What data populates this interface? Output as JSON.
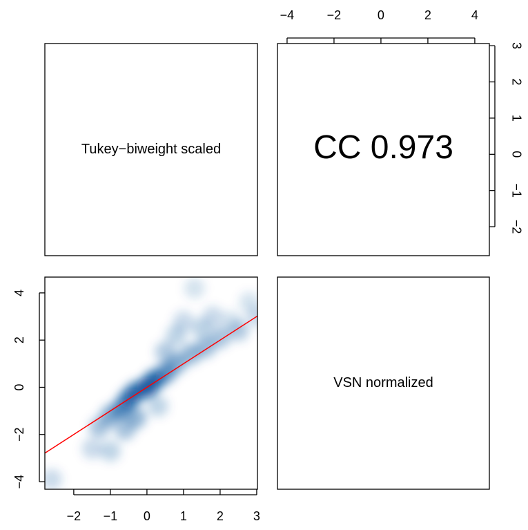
{
  "chart_data": [
    {
      "type": "label",
      "text": "Tukey−biweight scaled"
    },
    {
      "type": "label-large",
      "text": "CC 0.973",
      "xlim": [
        -4.41,
        4.62
      ],
      "xticks": [
        {
          "value": -4,
          "label": "−4"
        },
        {
          "value": -2,
          "label": "−2"
        },
        0,
        2,
        4
      ],
      "ylim": [
        -2.8,
        3.06
      ],
      "yticks": [
        {
          "value": -2,
          "label": "−2"
        },
        {
          "value": -1,
          "label": "−1"
        },
        0,
        1,
        2,
        3
      ]
    },
    {
      "type": "smooth-scatter",
      "color": "#08519c",
      "x": [
        -2.6,
        -1.5,
        -1.0,
        -1.3,
        -1.0,
        -0.7,
        -0.5,
        -0.3,
        0,
        0.2,
        0.5,
        -0.3,
        -0.6,
        0.3,
        0.8,
        1.2,
        1.6,
        2.0,
        2.5,
        0.5,
        0.8,
        1.0,
        1.3,
        1.8,
        2.3,
        2.8,
        3.0,
        1.5
      ],
      "y": [
        -3.9,
        -2.6,
        -2.7,
        -1.7,
        -1.2,
        -0.9,
        -0.5,
        -0.2,
        0,
        0.3,
        0.6,
        -1.3,
        -1.8,
        -0.8,
        1.0,
        1.4,
        1.7,
        2.1,
        2.4,
        1.5,
        2.2,
        2.8,
        4.2,
        3.0,
        2.8,
        3.6,
        3.0,
        2.5
      ],
      "density": [
        0.25,
        0.25,
        0.3,
        0.4,
        0.55,
        0.7,
        0.85,
        0.9,
        1,
        0.95,
        0.7,
        0.5,
        0.4,
        0.3,
        0.55,
        0.5,
        0.45,
        0.4,
        0.35,
        0.35,
        0.3,
        0.25,
        0.2,
        0.25,
        0.2,
        0.2,
        0.25,
        0.3
      ],
      "fit": {
        "intercept": 0,
        "slope": 1,
        "color": "#ff0000"
      },
      "xlim": [
        -2.79,
        3.02
      ],
      "xticks": [
        {
          "value": -2,
          "label": "−2"
        },
        {
          "value": -1,
          "label": "−1"
        },
        0,
        1,
        2,
        3
      ],
      "ylim": [
        -4.32,
        4.67
      ],
      "yticks": [
        {
          "value": -4,
          "label": "−4"
        },
        {
          "value": -2,
          "label": "−2"
        },
        0,
        2,
        4
      ]
    },
    {
      "type": "label",
      "text": "VSN normalized"
    }
  ]
}
